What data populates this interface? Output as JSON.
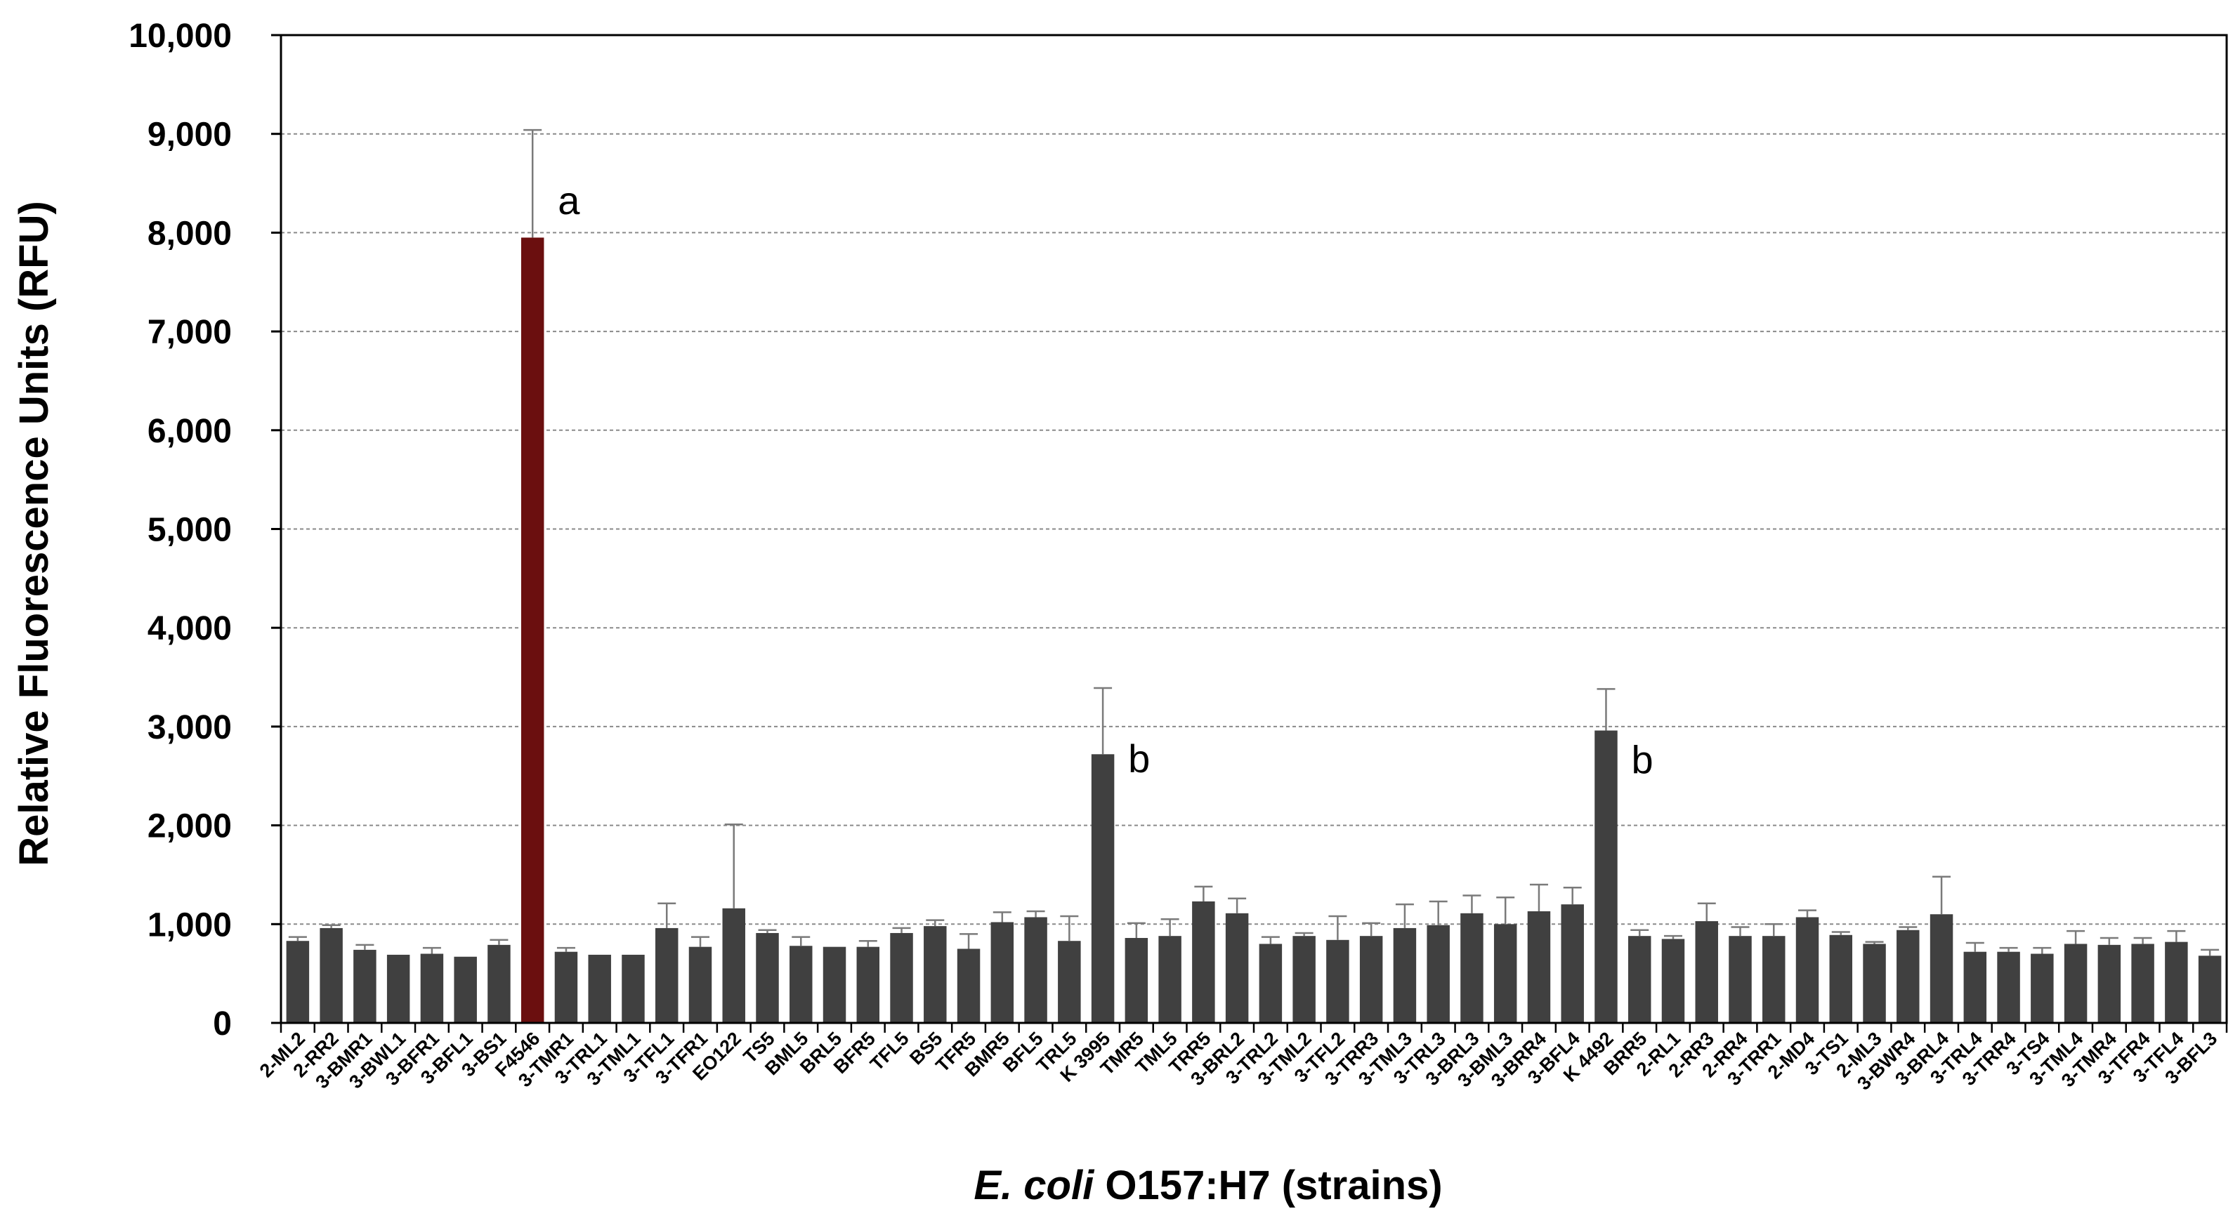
{
  "chart_data": {
    "type": "bar",
    "title": "",
    "ylabel": "Relative Fluorescence Units (RFU)",
    "xlabel_italic": "E. coli",
    "xlabel_rest": " O157:H7 (strains)",
    "ylim": [
      0,
      10000
    ],
    "yticks": [
      0,
      1000,
      2000,
      3000,
      4000,
      5000,
      6000,
      7000,
      8000,
      9000,
      10000
    ],
    "ytick_labels": [
      "0",
      "1,000",
      "2,000",
      "3,000",
      "4,000",
      "5,000",
      "6,000",
      "7,000",
      "8,000",
      "9,000",
      "10,000"
    ],
    "grid": "horizontal dashed",
    "bar_color": "#404040",
    "highlight_color": "#6b0f0f",
    "categories": [
      "2-ML2",
      "2-RR2",
      "3-BMR1",
      "3-BWL1",
      "3-BFR1",
      "3-BFL1",
      "3-BS1",
      "F4546",
      "3-TMR1",
      "3-TRL1",
      "3-TML1",
      "3-TFL1",
      "3-TFR1",
      "EO122",
      "TS5",
      "BML5",
      "BRL5",
      "BFR5",
      "TFL5",
      "BS5",
      "TFR5",
      "BMR5",
      "BFL5",
      "TRL5",
      "K 3995",
      "TMR5",
      "TML5",
      "TRR5",
      "3-BRL2",
      "3-TRL2",
      "3-TML2",
      "3-TFL2",
      "3-TRR3",
      "3-TML3",
      "3-TRL3",
      "3-BRL3",
      "3-BML3",
      "3-BRR4",
      "3-BFL4",
      "K 4492",
      "BRR5",
      "2-RL1",
      "2-RR3",
      "2-RR4",
      "3-TRR1",
      "2-MD4",
      "3-TS1",
      "2-ML3",
      "3-BWR4",
      "3-BRL4",
      "3-TRL4",
      "3-TRR4",
      "3-TS4",
      "3-TML4",
      "3-TMR4",
      "3-TFR4",
      "3-TFL4",
      "3-BFL3"
    ],
    "values": [
      830,
      960,
      740,
      690,
      700,
      670,
      790,
      7950,
      720,
      690,
      690,
      960,
      770,
      1160,
      910,
      780,
      770,
      770,
      910,
      980,
      750,
      1020,
      1070,
      830,
      2720,
      860,
      880,
      1230,
      1110,
      800,
      880,
      840,
      880,
      960,
      990,
      1110,
      1000,
      1130,
      1200,
      2960,
      880,
      850,
      1030,
      880,
      880,
      1070,
      890,
      800,
      940,
      1100,
      720,
      720,
      700,
      800,
      790,
      800,
      820,
      680
    ],
    "errors": [
      40,
      30,
      50,
      0,
      60,
      0,
      50,
      1090,
      40,
      0,
      0,
      250,
      100,
      850,
      30,
      90,
      0,
      60,
      50,
      60,
      150,
      100,
      60,
      250,
      670,
      150,
      170,
      150,
      150,
      70,
      30,
      240,
      130,
      240,
      240,
      180,
      270,
      270,
      170,
      420,
      60,
      30,
      180,
      90,
      120,
      70,
      30,
      20,
      30,
      380,
      90,
      40,
      60,
      130,
      70,
      60,
      110,
      60
    ],
    "highlight_index": 7,
    "annotations": [
      {
        "category": "F4546",
        "text": "a"
      },
      {
        "category": "K 3995",
        "text": "b"
      },
      {
        "category": "K 4492",
        "text": "b"
      }
    ]
  }
}
